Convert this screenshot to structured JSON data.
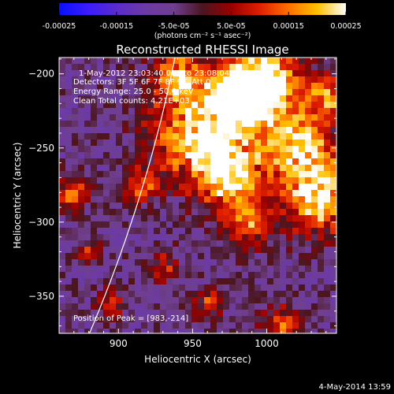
{
  "chart_data": {
    "type": "heatmap",
    "title": "Reconstructed RHESSI Image",
    "xlabel": "Heliocentric X (arcsec)",
    "ylabel": "Heliocentric Y (arcsec)",
    "xlim": [
      860,
      1047
    ],
    "ylim": [
      -375,
      -189
    ],
    "xticks": [
      900,
      950,
      1000
    ],
    "yticks": [
      -200,
      -250,
      -300,
      -350
    ],
    "info_lines": [
      "1-May-2012 23:03:40.000 to 23:08:04.000",
      "Detectors: 3F 5F 6F 7F 8F 9F, Att 0",
      "Energy Range: 25.0 - 50.0 keV",
      "Clean     Total counts: 4.21E+03"
    ],
    "peak_label": "Position of Peak = [983,-214]",
    "peak": [
      983,
      -214
    ],
    "colorbar": {
      "min": -0.00025,
      "max": 0.00025,
      "tick_values": [
        -0.00025,
        -0.00015,
        -5e-05,
        5e-05,
        0.00015,
        0.00025
      ],
      "tick_labels": [
        "-0.00025",
        "-0.00015",
        "-5.0e-05",
        "5.0e-05",
        "0.00015",
        "0.00025"
      ],
      "unit_label": "(photons cm⁻² s⁻¹ asec⁻²)",
      "colors": [
        "#0a10ff",
        "#3a1cff",
        "#5a2ccc",
        "#6c3aa6",
        "#6f3f8f",
        "#4a1620",
        "#9a0000",
        "#e02000",
        "#ff7000",
        "#ffc000",
        "#ffffff"
      ]
    },
    "limb": {
      "solar_radius_arcsec": 957
    },
    "grid": false
  },
  "footer": {
    "timestamp": "4-May-2014 13:59"
  },
  "colors": {
    "background": "#000000",
    "text": "#ffffff",
    "limb_line": "#ffffff"
  }
}
